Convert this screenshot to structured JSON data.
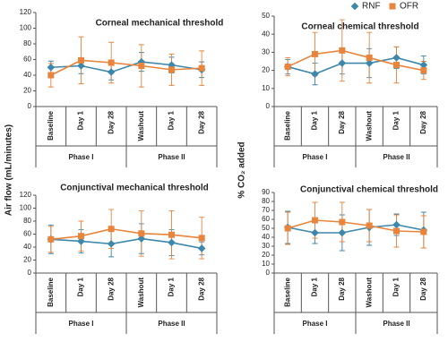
{
  "chart_data": [
    {
      "type": "line",
      "title": "Corneal mechanical threshold",
      "ylabel": "Air flow (mL/minutes)",
      "categories": [
        "Baseline",
        "Day 1",
        "Day 28",
        "Washout",
        "Day 1",
        "Day 28"
      ],
      "phases": [
        "Phase I",
        "Phase II"
      ],
      "ylim": [
        0,
        120
      ],
      "yticks": [
        0,
        20,
        40,
        60,
        80,
        100,
        120
      ],
      "series": [
        {
          "name": "RNF",
          "color": "#3d87ab",
          "marker": "diamond",
          "values": [
            50,
            52,
            44,
            57,
            53,
            47
          ],
          "errors": [
            8,
            10,
            10,
            12,
            10,
            10
          ]
        },
        {
          "name": "OFR",
          "color": "#e8843c",
          "marker": "square",
          "values": [
            40,
            59,
            56,
            52,
            47,
            49
          ],
          "errors": [
            15,
            30,
            26,
            27,
            20,
            22
          ]
        }
      ]
    },
    {
      "type": "line",
      "title": "Corneal chemical threshold",
      "ylabel": "% CO₂ added",
      "categories": [
        "Baseline",
        "Day 1",
        "Day 28",
        "Washout",
        "Day 1",
        "Day 28"
      ],
      "phases": [
        "Phase I",
        "Phase II"
      ],
      "ylim": [
        0,
        50
      ],
      "yticks": [
        0,
        10,
        20,
        30,
        40,
        50
      ],
      "series": [
        {
          "name": "RNF",
          "color": "#3d87ab",
          "marker": "diamond",
          "values": [
            22,
            18,
            24,
            24,
            27,
            23
          ],
          "errors": [
            4,
            6,
            6,
            8,
            6,
            5
          ]
        },
        {
          "name": "OFR",
          "color": "#e8843c",
          "marker": "square",
          "values": [
            22,
            29,
            31,
            27,
            23,
            20
          ],
          "errors": [
            5,
            12,
            17,
            14,
            10,
            5
          ]
        }
      ]
    },
    {
      "type": "line",
      "title": "Conjunctival mechanical threshold",
      "categories": [
        "Baseline",
        "Day 1",
        "Day 28",
        "Washout",
        "Day 1",
        "Day 28"
      ],
      "phases": [
        "Phase I",
        "Phase II"
      ],
      "ylim": [
        0,
        120
      ],
      "yticks": [
        0,
        20,
        40,
        60,
        80,
        100,
        120
      ],
      "series": [
        {
          "name": "RNF",
          "color": "#3d87ab",
          "marker": "diamond",
          "values": [
            52,
            49,
            45,
            53,
            47,
            38
          ],
          "errors": [
            22,
            18,
            20,
            23,
            20,
            10
          ]
        },
        {
          "name": "OFR",
          "color": "#e8843c",
          "marker": "square",
          "values": [
            52,
            57,
            68,
            61,
            59,
            54
          ],
          "errors": [
            20,
            23,
            30,
            35,
            37,
            32
          ]
        }
      ]
    },
    {
      "type": "line",
      "title": "Conjunctival chemical threshold",
      "categories": [
        "Baseline",
        "Day 1",
        "Day 28",
        "Washout",
        "Day 1",
        "Day 28"
      ],
      "phases": [
        "Phase I",
        "Phase II"
      ],
      "ylim": [
        0,
        90
      ],
      "yticks": [
        0,
        10,
        20,
        30,
        40,
        50,
        60,
        70,
        80,
        90
      ],
      "series": [
        {
          "name": "RNF",
          "color": "#3d87ab",
          "marker": "diamond",
          "values": [
            51,
            45,
            45,
            51,
            54,
            48
          ],
          "errors": [
            18,
            12,
            20,
            20,
            12,
            20
          ]
        },
        {
          "name": "OFR",
          "color": "#e8843c",
          "marker": "square",
          "values": [
            50,
            59,
            57,
            53,
            47,
            46
          ],
          "errors": [
            18,
            20,
            22,
            18,
            18,
            18
          ]
        }
      ]
    }
  ]
}
